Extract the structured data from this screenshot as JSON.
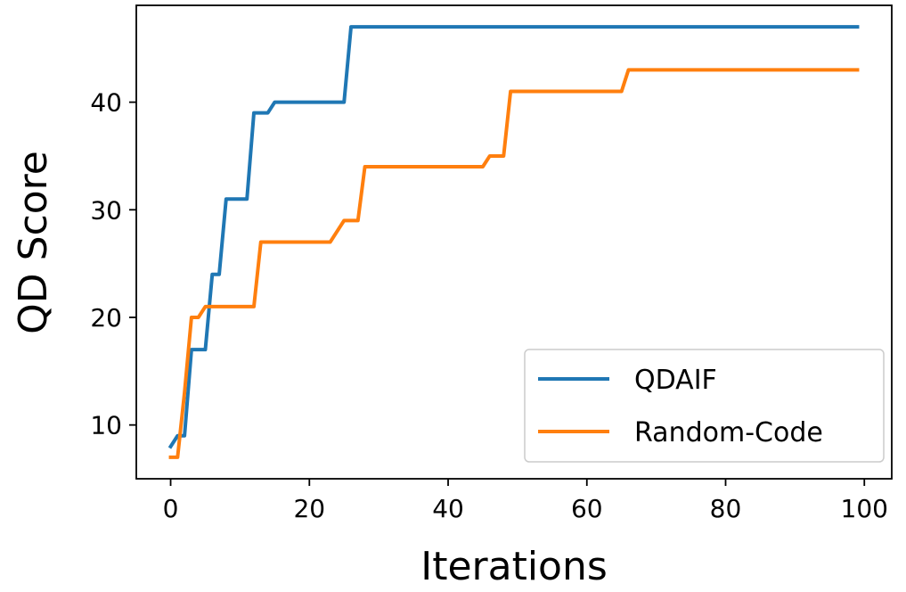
{
  "chart_data": {
    "type": "line",
    "xlabel": "Iterations",
    "ylabel": "QD Score",
    "xlim": [
      -4.95,
      103.95
    ],
    "ylim": [
      5.0,
      49.0
    ],
    "x_ticks": [
      0,
      20,
      40,
      60,
      80,
      100
    ],
    "y_ticks": [
      10,
      20,
      30,
      40
    ],
    "grid": false,
    "legend_position": "lower-right",
    "series": [
      {
        "name": "QDAIF",
        "color": "#1f77b4",
        "x": [
          0,
          1,
          2,
          3,
          4,
          5,
          6,
          7,
          8,
          9,
          10,
          11,
          12,
          13,
          14,
          15,
          16,
          17,
          18,
          19,
          20,
          21,
          22,
          23,
          24,
          25,
          26,
          27,
          99
        ],
        "y": [
          8,
          9,
          9,
          17,
          17,
          17,
          24,
          24,
          31,
          31,
          31,
          31,
          39,
          39,
          39,
          40,
          40,
          40,
          40,
          40,
          40,
          40,
          40,
          40,
          40,
          40,
          47,
          47,
          47
        ]
      },
      {
        "name": "Random-Code",
        "color": "#ff7f0e",
        "x": [
          0,
          1,
          2,
          3,
          4,
          5,
          6,
          7,
          8,
          9,
          10,
          11,
          12,
          13,
          23,
          24,
          25,
          26,
          27,
          28,
          45,
          46,
          47,
          48,
          49,
          65,
          66,
          67,
          99
        ],
        "y": [
          7,
          7,
          13,
          20,
          20,
          21,
          21,
          21,
          21,
          21,
          21,
          21,
          21,
          27,
          27,
          28,
          29,
          29,
          29,
          34,
          34,
          35,
          35,
          35,
          41,
          41,
          43,
          43,
          43
        ]
      }
    ]
  }
}
